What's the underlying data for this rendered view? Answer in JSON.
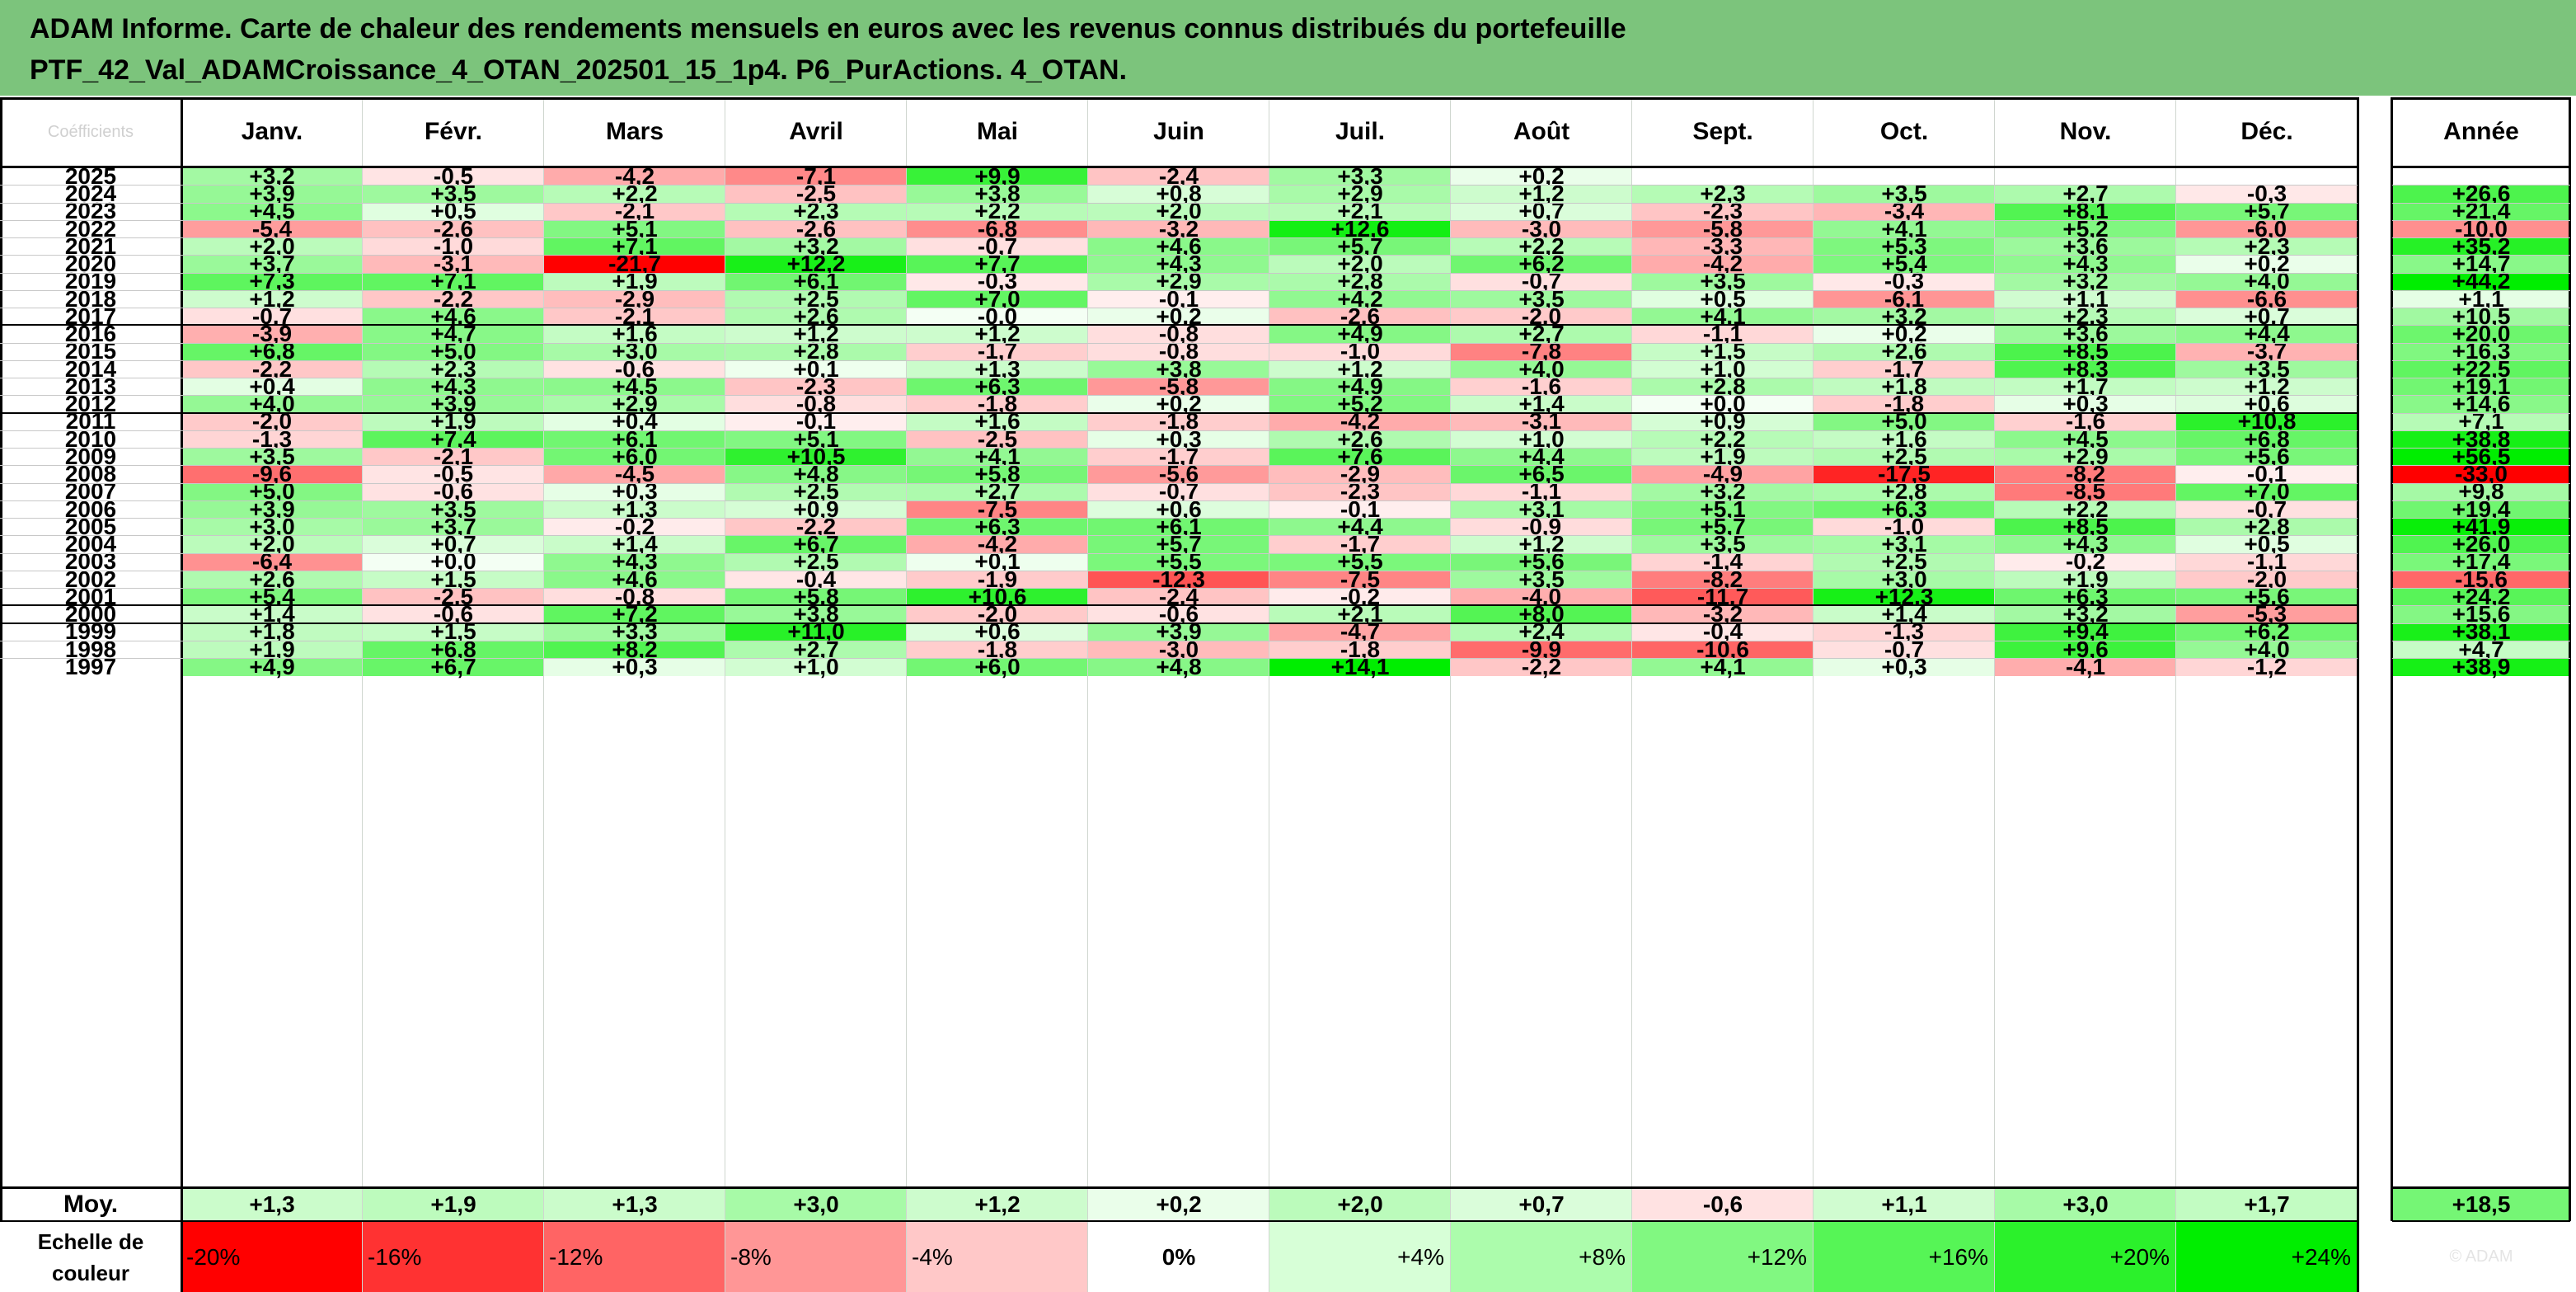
{
  "title_line1": "ADAM Informe. Carte de chaleur des rendements mensuels en euros avec les revenus connus distribués du portefeuille",
  "title_line2": "PTF_42_Val_ADAMCroissance_4_OTAN_202501_15_1p4. P6_PurActions. 4_OTAN.",
  "corner_label": "Coéfficients",
  "colors": {
    "header_bg": "#7cc47c",
    "neg_max": "#ff0000",
    "pos_max": "#00ee00",
    "zero": "#ffffff"
  },
  "chart_data": {
    "type": "heatmap",
    "title": "ADAM Informe. Carte de chaleur des rendements mensuels en euros avec les revenus connus distribués du portefeuille",
    "columns": [
      "Janv.",
      "Févr.",
      "Mars",
      "Avril",
      "Mai",
      "Juin",
      "Juil.",
      "Août",
      "Sept.",
      "Oct.",
      "Nov.",
      "Déc."
    ],
    "year_column": "Année",
    "rows": [
      {
        "year": "2025",
        "values": [
          "+3,2",
          "-0,5",
          "-4,2",
          "-7,1",
          "+9,9",
          "-2,4",
          "+3,3",
          "+0,2",
          "",
          "",
          "",
          ""
        ],
        "annual": ""
      },
      {
        "year": "2024",
        "values": [
          "+3,9",
          "+3,5",
          "+2,2",
          "-2,5",
          "+3,8",
          "+0,8",
          "+2,9",
          "+1,2",
          "+2,3",
          "+3,5",
          "+2,7",
          "-0,3"
        ],
        "annual": "+26,6"
      },
      {
        "year": "2023",
        "values": [
          "+4,5",
          "+0,5",
          "-2,1",
          "+2,3",
          "+2,2",
          "+2,0",
          "+2,1",
          "+0,7",
          "-2,3",
          "-3,4",
          "+8,1",
          "+5,7"
        ],
        "annual": "+21,4"
      },
      {
        "year": "2022",
        "values": [
          "-5,4",
          "-2,6",
          "+5,1",
          "-2,6",
          "-6,8",
          "-3,2",
          "+12,6",
          "-3,0",
          "-5,8",
          "+4,1",
          "+5,2",
          "-6,0"
        ],
        "annual": "-10,0"
      },
      {
        "year": "2021",
        "values": [
          "+2,0",
          "-1,0",
          "+7,1",
          "+3,2",
          "-0,7",
          "+4,6",
          "+5,7",
          "+2,2",
          "-3,3",
          "+5,3",
          "+3,6",
          "+2,3"
        ],
        "annual": "+35,2"
      },
      {
        "year": "2020",
        "values": [
          "+3,7",
          "-3,1",
          "-21,7",
          "+12,2",
          "+7,7",
          "+4,3",
          "+2,0",
          "+6,2",
          "-4,2",
          "+5,4",
          "+4,3",
          "+0,2"
        ],
        "annual": "+14,7"
      },
      {
        "year": "2019",
        "values": [
          "+7,3",
          "+7,1",
          "+1,9",
          "+6,1",
          "-0,3",
          "+2,9",
          "+2,8",
          "-0,7",
          "+3,5",
          "-0,3",
          "+3,2",
          "+4,0"
        ],
        "annual": "+44,2"
      },
      {
        "year": "2018",
        "values": [
          "+1,2",
          "-2,2",
          "-2,9",
          "+2,5",
          "+7,0",
          "-0,1",
          "+4,2",
          "+3,5",
          "+0,5",
          "-6,1",
          "+1,1",
          "-6,6"
        ],
        "annual": "+1,1"
      },
      {
        "year": "2017",
        "values": [
          "-0,7",
          "+4,6",
          "-2,1",
          "+2,6",
          "-0,0",
          "+0,2",
          "-2,6",
          "-2,0",
          "+4,1",
          "+3,2",
          "+2,3",
          "+0,7"
        ],
        "annual": "+10,5"
      },
      {
        "year": "2016",
        "values": [
          "-3,9",
          "+4,7",
          "+1,6",
          "+1,2",
          "+1,2",
          "-0,8",
          "+4,9",
          "+2,7",
          "-1,1",
          "+0,2",
          "+3,6",
          "+4,4"
        ],
        "annual": "+20,0"
      },
      {
        "year": "2015",
        "values": [
          "+6,8",
          "+5,0",
          "+3,0",
          "+2,8",
          "-1,7",
          "-0,8",
          "-1,0",
          "-7,8",
          "+1,5",
          "+2,6",
          "+8,5",
          "-3,7"
        ],
        "annual": "+16,3"
      },
      {
        "year": "2014",
        "values": [
          "-2,2",
          "+2,3",
          "-0,6",
          "+0,1",
          "+1,3",
          "+3,8",
          "+1,2",
          "+4,0",
          "+1,0",
          "-1,7",
          "+8,3",
          "+3,5"
        ],
        "annual": "+22,5"
      },
      {
        "year": "2013",
        "values": [
          "+0,4",
          "+4,3",
          "+4,5",
          "-2,3",
          "+6,3",
          "-5,8",
          "+4,9",
          "-1,6",
          "+2,8",
          "+1,8",
          "+1,7",
          "+1,2"
        ],
        "annual": "+19,1"
      },
      {
        "year": "2012",
        "values": [
          "+4,0",
          "+3,9",
          "+2,9",
          "-0,8",
          "-1,8",
          "+0,2",
          "+5,2",
          "+1,4",
          "+0,0",
          "-1,8",
          "+0,3",
          "+0,6"
        ],
        "annual": "+14,6"
      },
      {
        "year": "2011",
        "values": [
          "-2,0",
          "+1,9",
          "+0,4",
          "-0,1",
          "+1,6",
          "-1,8",
          "-4,2",
          "-3,1",
          "+0,9",
          "+5,0",
          "-1,6",
          "+10,8"
        ],
        "annual": "+7,1"
      },
      {
        "year": "2010",
        "values": [
          "-1,3",
          "+7,4",
          "+6,1",
          "+5,1",
          "-2,5",
          "+0,3",
          "+2,6",
          "+1,0",
          "+2,2",
          "+1,6",
          "+4,5",
          "+6,8"
        ],
        "annual": "+38,8"
      },
      {
        "year": "2009",
        "values": [
          "+3,5",
          "-2,1",
          "+6,0",
          "+10,5",
          "+4,1",
          "-1,7",
          "+7,6",
          "+4,4",
          "+1,9",
          "+2,5",
          "+2,9",
          "+5,6"
        ],
        "annual": "+56,5"
      },
      {
        "year": "2008",
        "values": [
          "-9,6",
          "-0,5",
          "-4,5",
          "+4,8",
          "+5,8",
          "-5,6",
          "-2,9",
          "+6,5",
          "-4,9",
          "-17,5",
          "-8,2",
          "-0,1"
        ],
        "annual": "-33,0"
      },
      {
        "year": "2007",
        "values": [
          "+5,0",
          "-0,6",
          "+0,3",
          "+2,5",
          "+2,7",
          "-0,7",
          "-2,3",
          "-1,1",
          "+3,2",
          "+2,8",
          "-8,5",
          "+7,0"
        ],
        "annual": "+9,8"
      },
      {
        "year": "2006",
        "values": [
          "+3,9",
          "+3,5",
          "+1,3",
          "+0,9",
          "-7,5",
          "+0,6",
          "-0,1",
          "+3,1",
          "+5,1",
          "+6,3",
          "+2,2",
          "-0,7"
        ],
        "annual": "+19,4"
      },
      {
        "year": "2005",
        "values": [
          "+3,0",
          "+3,7",
          "-0,2",
          "-2,2",
          "+6,3",
          "+6,1",
          "+4,4",
          "-0,9",
          "+5,7",
          "-1,0",
          "+8,5",
          "+2,8"
        ],
        "annual": "+41,9"
      },
      {
        "year": "2004",
        "values": [
          "+2,0",
          "+0,7",
          "+1,4",
          "+6,7",
          "-4,2",
          "+5,7",
          "-1,7",
          "+1,2",
          "+3,5",
          "+3,1",
          "+4,3",
          "+0,5"
        ],
        "annual": "+26,0"
      },
      {
        "year": "2003",
        "values": [
          "-6,4",
          "+0,0",
          "+4,3",
          "+2,5",
          "+0,1",
          "+5,5",
          "+5,5",
          "+5,6",
          "-1,4",
          "+2,5",
          "-0,2",
          "-1,1"
        ],
        "annual": "+17,4"
      },
      {
        "year": "2002",
        "values": [
          "+2,6",
          "+1,5",
          "+4,6",
          "-0,4",
          "-1,9",
          "-12,3",
          "-7,5",
          "+3,5",
          "-8,2",
          "+3,0",
          "+1,9",
          "-2,0"
        ],
        "annual": "-15,6"
      },
      {
        "year": "2001",
        "values": [
          "+5,4",
          "-2,5",
          "-0,8",
          "+5,8",
          "+10,6",
          "-2,4",
          "-0,2",
          "-4,0",
          "-11,7",
          "+12,3",
          "+6,3",
          "+5,6"
        ],
        "annual": "+24,2"
      },
      {
        "year": "2000",
        "values": [
          "+1,4",
          "-0,6",
          "+7,2",
          "+3,8",
          "-2,0",
          "-0,6",
          "+2,1",
          "+8,0",
          "-3,2",
          "+1,4",
          "+3,2",
          "-5,3"
        ],
        "annual": "+15,6"
      },
      {
        "year": "1999",
        "values": [
          "+1,8",
          "+1,5",
          "+3,3",
          "+11,0",
          "+0,6",
          "+3,9",
          "-4,7",
          "+2,4",
          "-0,4",
          "-1,3",
          "+9,4",
          "+6,2"
        ],
        "annual": "+38,1"
      },
      {
        "year": "1998",
        "values": [
          "+1,9",
          "+6,8",
          "+8,2",
          "+2,7",
          "-1,8",
          "-3,0",
          "-1,8",
          "-9,9",
          "-10,6",
          "-0,7",
          "+9,6",
          "+4,0"
        ],
        "annual": "+4,7"
      },
      {
        "year": "1997",
        "values": [
          "+4,9",
          "+6,7",
          "+0,3",
          "+1,0",
          "+6,0",
          "+4,8",
          "+14,1",
          "-2,2",
          "+4,1",
          "+0,3",
          "-4,1",
          "-1,2"
        ],
        "annual": "+38,9"
      }
    ],
    "average": {
      "label": "Moy.",
      "values": [
        "+1,3",
        "+1,9",
        "+1,3",
        "+3,0",
        "+1,2",
        "+0,2",
        "+2,0",
        "+0,7",
        "-0,6",
        "+1,1",
        "+3,0",
        "+1,7"
      ],
      "annual": "+18,5"
    },
    "scale": {
      "label": "Echelle de couleur",
      "stops": [
        "-20%",
        "-16%",
        "-12%",
        "-8%",
        "-4%",
        "0%",
        "+4%",
        "+8%",
        "+12%",
        "+16%",
        "+20%",
        "+24%"
      ],
      "stop_values": [
        -20,
        -16,
        -12,
        -8,
        -4,
        0,
        4,
        8,
        12,
        16,
        20,
        24
      ],
      "faint_text": "© ADAM"
    }
  }
}
